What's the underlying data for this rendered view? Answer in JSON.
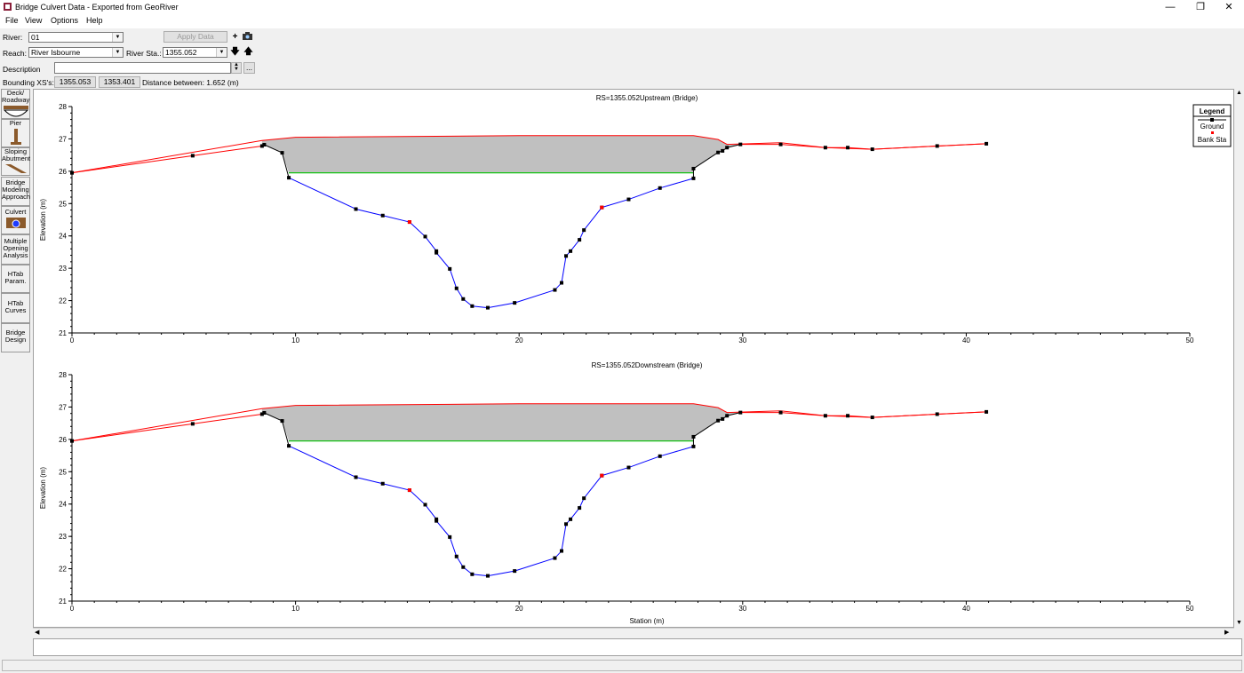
{
  "window": {
    "title": "Bridge Culvert Data - Exported from GeoRiver"
  },
  "menu": [
    "File",
    "View",
    "Options",
    "Help"
  ],
  "form": {
    "river_label": "River:",
    "river_value": "01",
    "apply_label": "Apply Data",
    "reach_label": "Reach:",
    "reach_value": "River Isbourne",
    "river_sta_label": "River Sta.:",
    "river_sta_value": "1355.052",
    "description_label": "Description",
    "description_value": "",
    "description_button": "...",
    "bounding_label": "Bounding XS's:",
    "bounding_up": "1355.053",
    "bounding_down": "1353.401",
    "distance_text": "Distance between: 1.652 (m)"
  },
  "sidebar": [
    {
      "label": "Deck/ Roadway",
      "icon": "deck-icon"
    },
    {
      "label": "Pier",
      "icon": "pier-icon"
    },
    {
      "label": "Sloping Abutment",
      "icon": "abutment-icon"
    },
    {
      "label": "Bridge Modeling Approach",
      "icon": ""
    },
    {
      "label": "Culvert",
      "icon": "culvert-icon"
    },
    {
      "label": "Multiple Opening Analysis",
      "icon": ""
    },
    {
      "label": "HTab Param.",
      "icon": ""
    },
    {
      "label": "HTab Curves",
      "icon": ""
    },
    {
      "label": "Bridge Design",
      "icon": ""
    }
  ],
  "legend": {
    "title": "Legend",
    "items": [
      "Ground",
      "Bank Sta"
    ]
  },
  "colors": {
    "ground": "#0000ff",
    "deck": "#ff0000",
    "fill": "#c0c0c0",
    "low_chord": "#00c000",
    "bank": "#ff0000"
  },
  "chart_data": [
    {
      "type": "line",
      "title": "RS=1355.052Upstream  (Bridge)",
      "xlabel": "",
      "ylabel": "Elevation (m)",
      "xlim": [
        0,
        50
      ],
      "ylim": [
        21,
        28
      ],
      "xticks": [
        0,
        10,
        20,
        30,
        40,
        50
      ],
      "yticks": [
        21,
        22,
        23,
        24,
        25,
        26,
        27,
        28
      ],
      "ground": [
        [
          0,
          25.95
        ],
        [
          5.4,
          26.48
        ],
        [
          8.5,
          26.78
        ],
        [
          8.6,
          26.82
        ],
        [
          9.4,
          26.57
        ],
        [
          9.7,
          25.8
        ],
        [
          12.7,
          24.83
        ],
        [
          13.9,
          24.63
        ],
        [
          15.1,
          24.43
        ],
        [
          15.8,
          23.98
        ],
        [
          16.3,
          23.53
        ],
        [
          16.3,
          23.48
        ],
        [
          16.9,
          22.98
        ],
        [
          17.2,
          22.38
        ],
        [
          17.5,
          22.05
        ],
        [
          17.9,
          21.83
        ],
        [
          18.6,
          21.78
        ],
        [
          19.8,
          21.93
        ],
        [
          21.6,
          22.33
        ],
        [
          21.9,
          22.55
        ],
        [
          22.1,
          23.38
        ],
        [
          22.3,
          23.53
        ],
        [
          22.7,
          23.88
        ],
        [
          22.9,
          24.18
        ],
        [
          23.7,
          24.88
        ],
        [
          24.9,
          25.13
        ],
        [
          26.3,
          25.48
        ],
        [
          27.8,
          25.78
        ],
        [
          27.8,
          26.08
        ],
        [
          28.9,
          26.58
        ],
        [
          29.1,
          26.63
        ],
        [
          29.3,
          26.73
        ],
        [
          29.9,
          26.83
        ],
        [
          31.7,
          26.83
        ],
        [
          33.7,
          26.73
        ],
        [
          34.7,
          26.73
        ],
        [
          35.8,
          26.68
        ],
        [
          38.7,
          26.78
        ],
        [
          40.9,
          26.85
        ]
      ],
      "bank_stations": [
        [
          15.1,
          24.43
        ],
        [
          23.7,
          24.88
        ]
      ],
      "deck_high": [
        [
          0,
          25.95
        ],
        [
          8.5,
          26.95
        ],
        [
          10,
          27.05
        ],
        [
          20,
          27.1
        ],
        [
          27.8,
          27.1
        ],
        [
          28.9,
          26.98
        ],
        [
          29.3,
          26.83
        ],
        [
          31.7,
          26.88
        ],
        [
          33.7,
          26.73
        ],
        [
          35.8,
          26.68
        ],
        [
          38.7,
          26.78
        ],
        [
          40.9,
          26.85
        ]
      ],
      "low_chord": [
        [
          9.7,
          25.95
        ],
        [
          27.8,
          25.95
        ]
      ]
    },
    {
      "type": "line",
      "title": "RS=1355.052Downstream  (Bridge)",
      "xlabel": "Station (m)",
      "ylabel": "Elevation (m)",
      "xlim": [
        0,
        50
      ],
      "ylim": [
        21,
        28
      ],
      "xticks": [
        0,
        10,
        20,
        30,
        40,
        50
      ],
      "yticks": [
        21,
        22,
        23,
        24,
        25,
        26,
        27,
        28
      ],
      "ground": [
        [
          0,
          25.95
        ],
        [
          5.4,
          26.48
        ],
        [
          8.5,
          26.78
        ],
        [
          8.6,
          26.82
        ],
        [
          9.4,
          26.57
        ],
        [
          9.7,
          25.8
        ],
        [
          12.7,
          24.83
        ],
        [
          13.9,
          24.63
        ],
        [
          15.1,
          24.43
        ],
        [
          15.8,
          23.98
        ],
        [
          16.3,
          23.53
        ],
        [
          16.3,
          23.48
        ],
        [
          16.9,
          22.98
        ],
        [
          17.2,
          22.38
        ],
        [
          17.5,
          22.05
        ],
        [
          17.9,
          21.83
        ],
        [
          18.6,
          21.78
        ],
        [
          19.8,
          21.93
        ],
        [
          21.6,
          22.33
        ],
        [
          21.9,
          22.55
        ],
        [
          22.1,
          23.38
        ],
        [
          22.3,
          23.53
        ],
        [
          22.7,
          23.88
        ],
        [
          22.9,
          24.18
        ],
        [
          23.7,
          24.88
        ],
        [
          24.9,
          25.13
        ],
        [
          26.3,
          25.48
        ],
        [
          27.8,
          25.78
        ],
        [
          27.8,
          26.08
        ],
        [
          28.9,
          26.58
        ],
        [
          29.1,
          26.63
        ],
        [
          29.3,
          26.73
        ],
        [
          29.9,
          26.83
        ],
        [
          31.7,
          26.83
        ],
        [
          33.7,
          26.73
        ],
        [
          34.7,
          26.73
        ],
        [
          35.8,
          26.68
        ],
        [
          38.7,
          26.78
        ],
        [
          40.9,
          26.85
        ]
      ],
      "bank_stations": [
        [
          15.1,
          24.43
        ],
        [
          23.7,
          24.88
        ]
      ],
      "deck_high": [
        [
          0,
          25.95
        ],
        [
          8.5,
          26.95
        ],
        [
          10,
          27.05
        ],
        [
          20,
          27.1
        ],
        [
          27.8,
          27.1
        ],
        [
          28.9,
          26.98
        ],
        [
          29.3,
          26.83
        ],
        [
          31.7,
          26.88
        ],
        [
          33.7,
          26.73
        ],
        [
          35.8,
          26.68
        ],
        [
          38.7,
          26.78
        ],
        [
          40.9,
          26.85
        ]
      ],
      "low_chord": [
        [
          9.7,
          25.95
        ],
        [
          27.8,
          25.95
        ]
      ]
    }
  ]
}
